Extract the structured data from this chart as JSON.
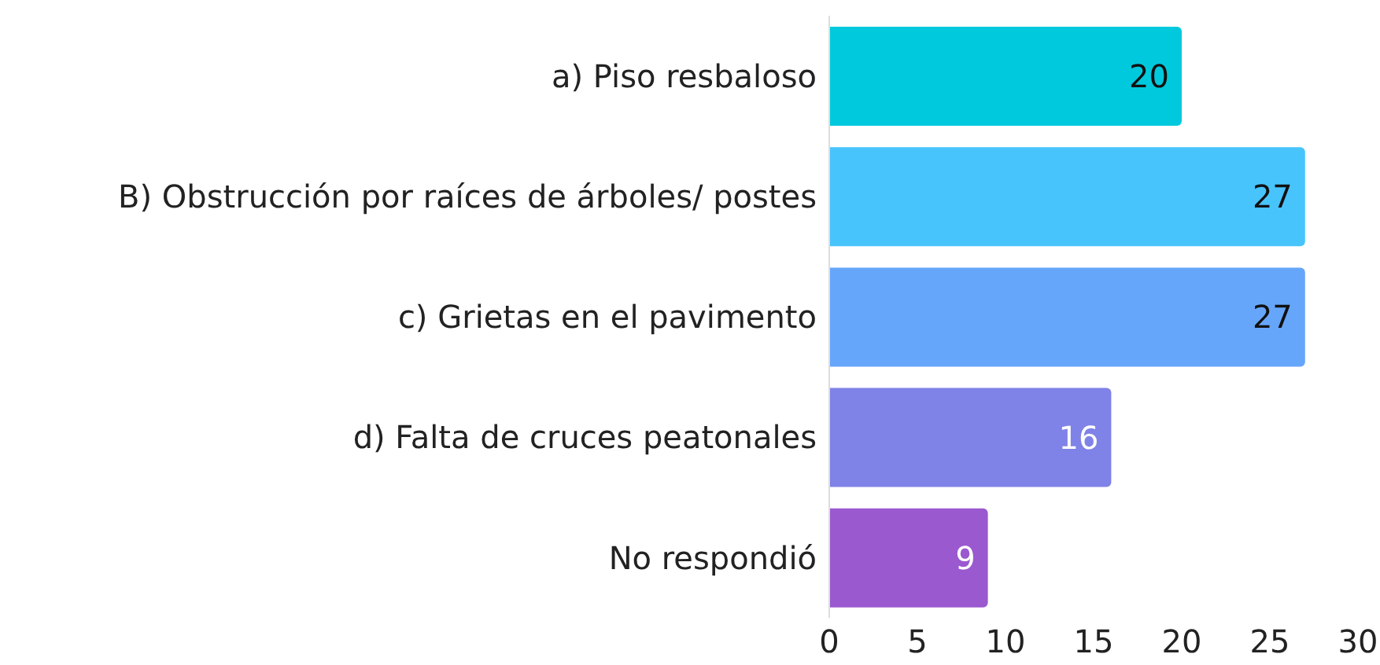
{
  "chart_data": {
    "type": "bar",
    "orientation": "horizontal",
    "categories": [
      "a)  Piso  resbaloso",
      "B)  Obstrucción  por  raíces  de  árboles/  postes",
      "c)  Grietas  en  el  pavimento",
      "d)  Falta  de  cruces  peatonales",
      "No  respondió"
    ],
    "values": [
      20,
      27,
      27,
      16,
      9
    ],
    "colors": [
      "#00c9dd",
      "#48c4fc",
      "#66a6fa",
      "#7f82e6",
      "#9a59cf"
    ],
    "xlim": [
      0,
      30
    ],
    "xticks": [
      0,
      5,
      10,
      15,
      20,
      25,
      30
    ],
    "data_labels": true,
    "grid": false
  }
}
